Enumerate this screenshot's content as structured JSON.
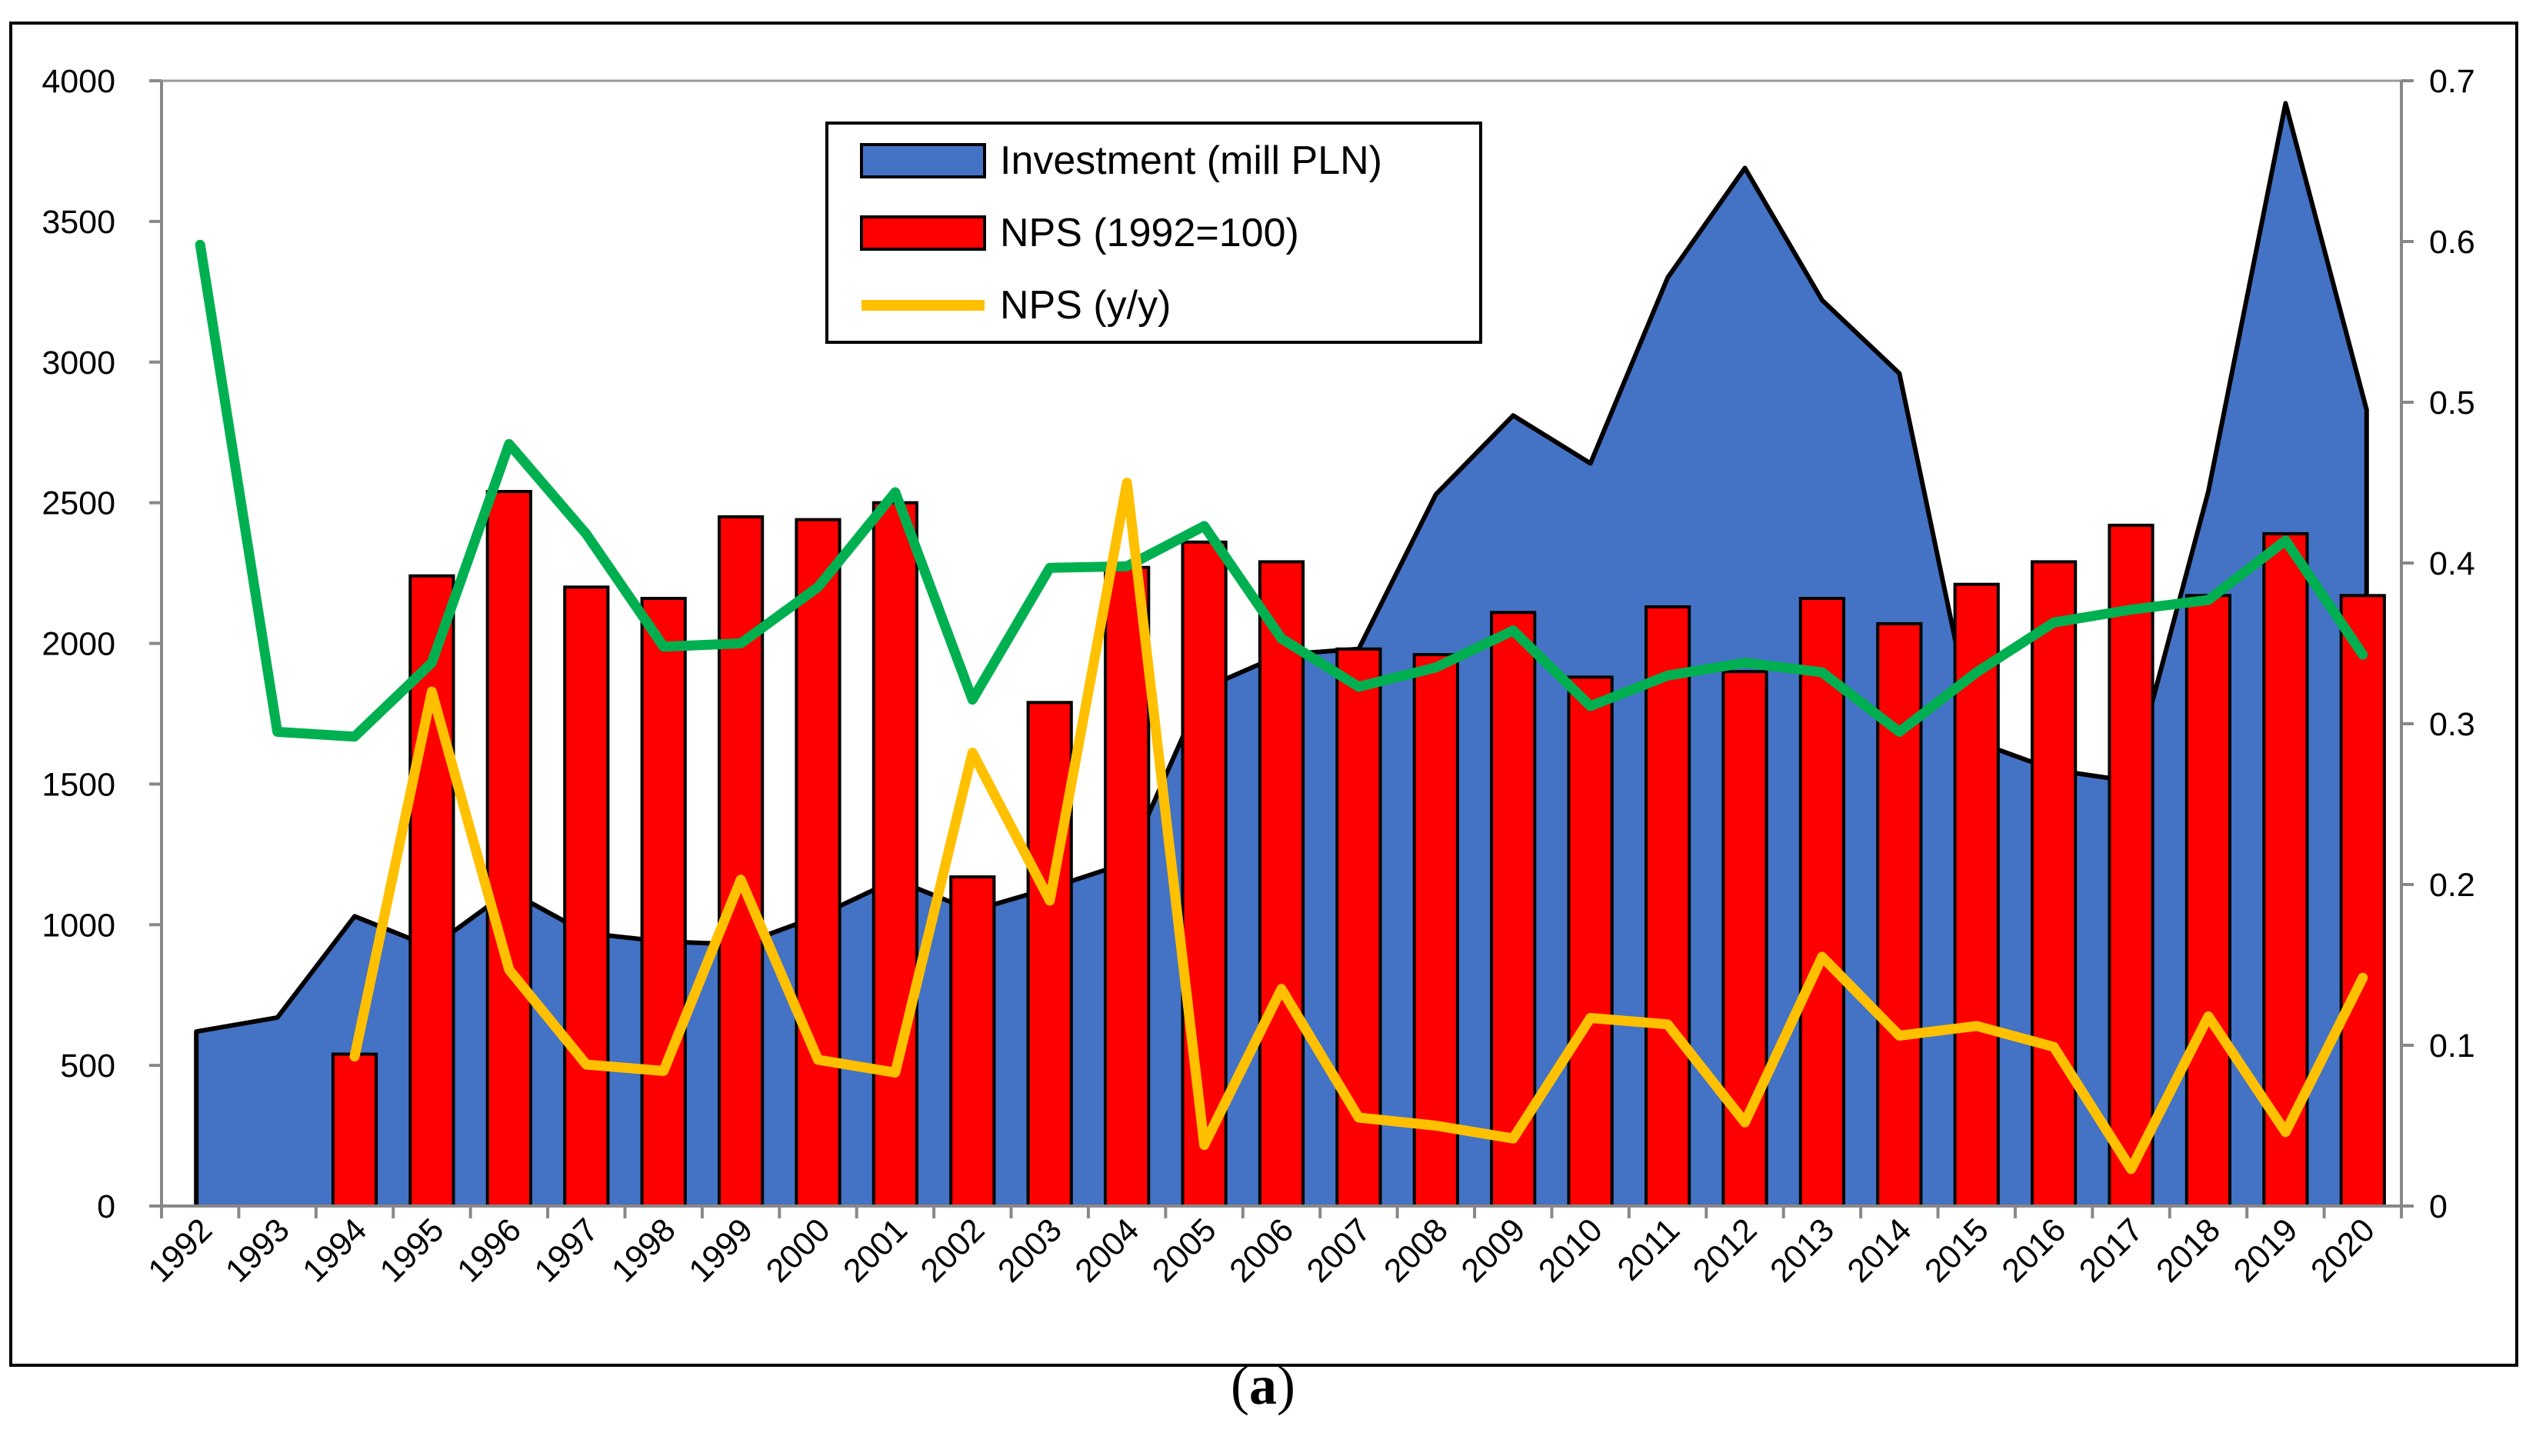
{
  "caption": {
    "open": "(",
    "letter": "a",
    "close": ")"
  },
  "colors": {
    "investment": "#4472C4",
    "nps_index": "#FF0000",
    "nps_yy": "#FFC000",
    "green_line": "#00B050"
  },
  "chart_data": {
    "type": "bar",
    "categories": [
      "1992",
      "1993",
      "1994",
      "1995",
      "1996",
      "1997",
      "1998",
      "1999",
      "2000",
      "2001",
      "2002",
      "2003",
      "2004",
      "2005",
      "2006",
      "2007",
      "2008",
      "2009",
      "2010",
      "2011",
      "2012",
      "2013",
      "2014",
      "2015",
      "2016",
      "2017",
      "2018",
      "2019",
      "2020"
    ],
    "left_axis": {
      "ylim": [
        0,
        4000
      ],
      "ticks": [
        "0",
        "500",
        "1000",
        "1500",
        "2000",
        "2500",
        "3000",
        "3500",
        "4000"
      ]
    },
    "right_axis": {
      "ylim": [
        0,
        0.7
      ],
      "ticks": [
        "0",
        "0.1",
        "0.2",
        "0.3",
        "0.4",
        "0.5",
        "0.6",
        "0.7"
      ]
    },
    "legend": {
      "position": "top-center",
      "entries": [
        {
          "label": "Investment (mill PLN)",
          "kind": "area"
        },
        {
          "label": "NPS (1992=100)",
          "kind": "bar"
        },
        {
          "label": "NPS (y/y)",
          "kind": "line"
        }
      ]
    },
    "series": [
      {
        "name": "Investment (mill PLN)",
        "type": "area",
        "axis": "left",
        "values": [
          620,
          670,
          1030,
          920,
          1120,
          970,
          940,
          930,
          1030,
          1160,
          1050,
          1130,
          1220,
          1840,
          1960,
          1980,
          2530,
          2810,
          2640,
          3300,
          3690,
          3220,
          2960,
          1650,
          1550,
          1510,
          2540,
          3920,
          2830
        ]
      },
      {
        "name": "NPS (1992=100)",
        "type": "bar",
        "axis": "left",
        "values": [
          null,
          null,
          540,
          2240,
          2540,
          2200,
          2160,
          2450,
          2440,
          2500,
          1170,
          1790,
          2270,
          2360,
          2290,
          1980,
          1960,
          2110,
          1880,
          2130,
          1900,
          2160,
          2070,
          2210,
          2290,
          2420,
          2170,
          2390,
          2170
        ]
      },
      {
        "name": "NPS (y/y)",
        "type": "line",
        "axis": "right",
        "values": [
          null,
          null,
          0.093,
          0.32,
          0.147,
          0.088,
          0.084,
          0.203,
          0.091,
          0.083,
          0.282,
          0.19,
          0.45,
          0.038,
          0.135,
          0.055,
          0.05,
          0.042,
          0.117,
          0.113,
          0.052,
          0.155,
          0.106,
          0.112,
          0.099,
          0.023,
          0.118,
          0.046,
          0.142
        ]
      },
      {
        "name": "",
        "type": "line",
        "axis": "right",
        "values": [
          0.598,
          0.295,
          0.292,
          0.338,
          0.474,
          0.418,
          0.348,
          0.35,
          0.385,
          0.444,
          0.315,
          0.397,
          0.398,
          0.423,
          0.353,
          0.323,
          0.335,
          0.358,
          0.311,
          0.33,
          0.338,
          0.332,
          0.295,
          0.332,
          0.363,
          0.371,
          0.377,
          0.414,
          0.343
        ]
      }
    ]
  }
}
